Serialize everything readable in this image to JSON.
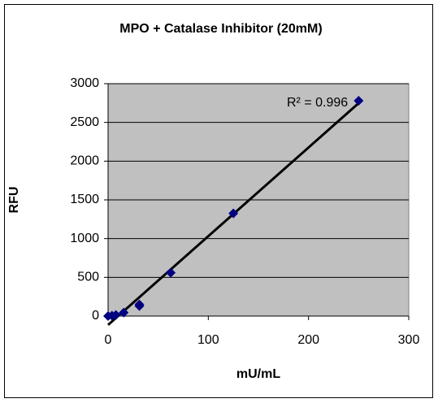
{
  "chart_data": {
    "type": "scatter",
    "title": "MPO + Catalase Inhibitor (20mM)",
    "x_label": "mU/mL",
    "y_label": "RFU",
    "series": [
      {
        "name": "MPO",
        "color": "#000080",
        "x": [
          0,
          3.9,
          7.8,
          15.6,
          31.25,
          31.25,
          62.5,
          125,
          250
        ],
        "values": [
          0,
          5,
          15,
          45,
          150,
          130,
          560,
          1325,
          2780
        ]
      }
    ],
    "annotation": "R² = 0.996",
    "trendline": true,
    "xlim": [
      0,
      300
    ],
    "xticks": [
      0,
      100,
      200,
      300
    ],
    "ylim": [
      0,
      3000
    ],
    "yticks": [
      0,
      500,
      1000,
      1500,
      2000,
      2500,
      3000
    ],
    "grid": true
  }
}
